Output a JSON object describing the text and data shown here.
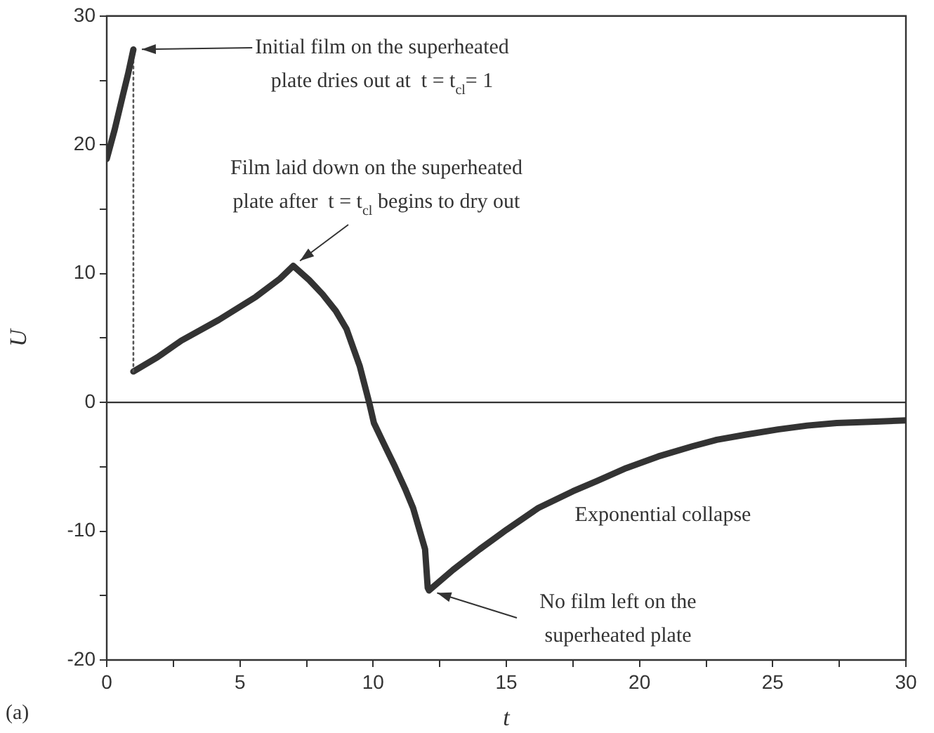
{
  "chart_data": {
    "type": "line",
    "xlabel": "t",
    "ylabel": "U",
    "xlim": [
      0,
      30
    ],
    "ylim": [
      -20,
      30
    ],
    "xticks": [
      0,
      {
        "value": 2.5,
        "label": null
      },
      5,
      {
        "value": 7.5,
        "label": null
      },
      10,
      {
        "value": 12.5,
        "label": null
      },
      15,
      {
        "value": 17.5,
        "label": null
      },
      20,
      {
        "value": 22.5,
        "label": null
      },
      25,
      {
        "value": 27.5,
        "label": null
      },
      30
    ],
    "yticks": [
      -20,
      {
        "value": -15,
        "label": null
      },
      -10,
      {
        "value": -5,
        "label": null
      },
      0,
      {
        "value": 5,
        "label": null
      },
      10,
      {
        "value": 15,
        "label": null
      },
      20,
      {
        "value": 25,
        "label": null
      },
      30
    ],
    "grid": false,
    "legend": false,
    "marker": "none",
    "ref_lines": [
      {
        "axis": "y",
        "value": 0,
        "color": "#333333",
        "line_style": "solid"
      }
    ],
    "series": [
      {
        "color": "#333333",
        "line_style": "solid",
        "x": [
          0,
          0.3,
          0.6,
          0.8,
          1.0
        ],
        "values": [
          18.9,
          21.2,
          23.8,
          25.5,
          27.4
        ]
      },
      {
        "color": "#555555",
        "line_style": "dotted",
        "x": [
          1.0,
          1.0
        ],
        "values": [
          27.4,
          2.4
        ]
      },
      {
        "color": "#333333",
        "line_style": "solid",
        "x": [
          1.0,
          1.9,
          2.8,
          4.2,
          5.6,
          6.5,
          7.0,
          7.6,
          8.1,
          8.6,
          9.0,
          9.5,
          9.85,
          10.03,
          10.4,
          10.8,
          11.2,
          11.5,
          11.95,
          12.05,
          12.1,
          13.0,
          14.0,
          15.0,
          16.2,
          17.5,
          18.4,
          19.5,
          20.7,
          22.0,
          22.9,
          24.0,
          25.2,
          26.3,
          27.4,
          28.7,
          30.0
        ],
        "values": [
          2.4,
          3.5,
          4.8,
          6.4,
          8.2,
          9.6,
          10.6,
          9.5,
          8.4,
          7.1,
          5.7,
          2.8,
          0,
          -1.6,
          -3.2,
          -4.9,
          -6.7,
          -8.2,
          -11.4,
          -14.4,
          -14.6,
          -13.0,
          -11.4,
          -9.9,
          -8.2,
          -6.9,
          -6.1,
          -5.1,
          -4.2,
          -3.4,
          -2.9,
          -2.5,
          -2.1,
          -1.8,
          -1.6,
          -1.5,
          -1.4
        ]
      }
    ],
    "annotations": [
      {
        "text": "Initial film on the superheated\nplate dries out at  t = t$_{cl}$= 1",
        "x": 1.0,
        "y": 27.4
      },
      {
        "text": "Film laid down on the superheated\nplate after  t = t$_{cl}$ begins to dry out",
        "x": 7.0,
        "y": 10.6
      },
      "Exponential collapse",
      {
        "text": "No film left on the\nsuperheated plate",
        "x": 12.1,
        "y": -14.6
      },
      "(a)"
    ]
  }
}
